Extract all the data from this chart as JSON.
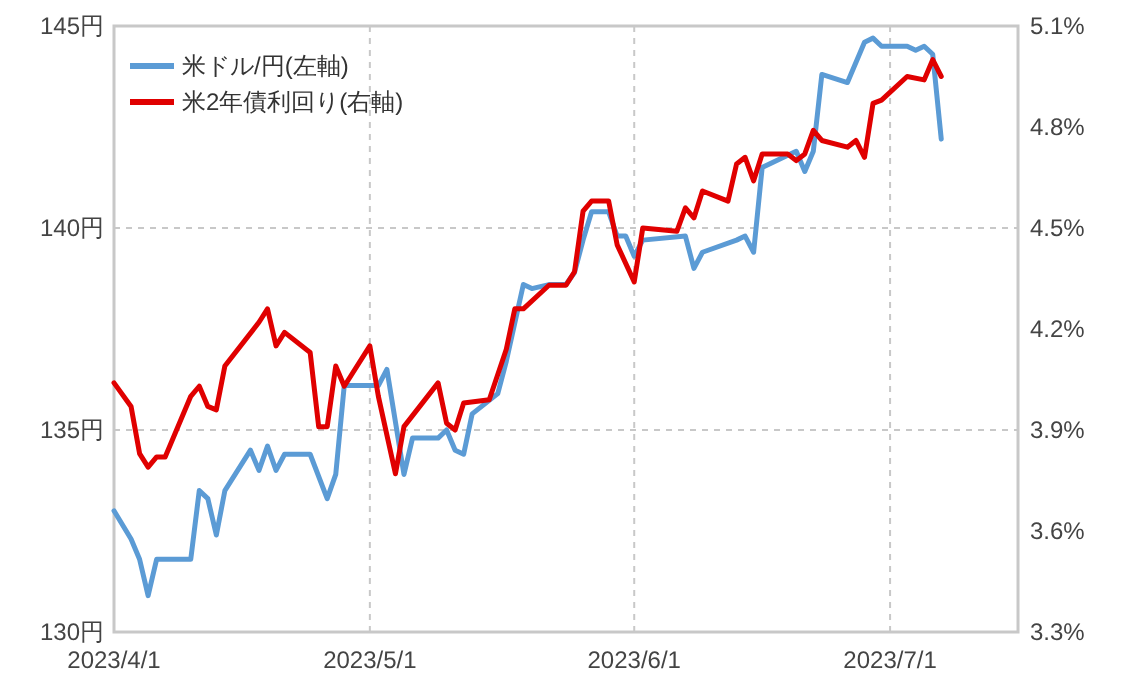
{
  "chart_data": {
    "type": "line",
    "xlim": [
      "2023-04-01",
      "2023-07-16"
    ],
    "xticks": [
      {
        "value": "2023-04-01",
        "label": "2023/4/1"
      },
      {
        "value": "2023-05-01",
        "label": "2023/5/1"
      },
      {
        "value": "2023-06-01",
        "label": "2023/6/1"
      },
      {
        "value": "2023-07-01",
        "label": "2023/7/1"
      }
    ],
    "ylim": [
      130,
      145
    ],
    "yticks": [
      {
        "value": 130,
        "label": "130円"
      },
      {
        "value": 135,
        "label": "135円"
      },
      {
        "value": 140,
        "label": "140円"
      },
      {
        "value": 145,
        "label": "145円"
      }
    ],
    "y2lim": [
      3.3,
      5.1
    ],
    "y2ticks": [
      {
        "value": 3.3,
        "label": "3.3%"
      },
      {
        "value": 3.6,
        "label": "3.6%"
      },
      {
        "value": 3.9,
        "label": "3.9%"
      },
      {
        "value": 4.2,
        "label": "4.2%"
      },
      {
        "value": 4.5,
        "label": "4.5%"
      },
      {
        "value": 4.8,
        "label": "4.8%"
      },
      {
        "value": 5.1,
        "label": "5.1%"
      }
    ],
    "grid": true,
    "legend": "top left",
    "marker": "none",
    "line_style": "solid",
    "series": [
      {
        "name": "米ドル/円(左軸)",
        "color": "#5b9bd5",
        "axis": "y",
        "x": [
          "2023-04-01",
          "2023-04-03",
          "2023-04-04",
          "2023-04-05",
          "2023-04-06",
          "2023-04-10",
          "2023-04-11",
          "2023-04-12",
          "2023-04-13",
          "2023-04-14",
          "2023-04-17",
          "2023-04-18",
          "2023-04-19",
          "2023-04-20",
          "2023-04-21",
          "2023-04-24",
          "2023-04-26",
          "2023-04-27",
          "2023-04-28",
          "2023-05-02",
          "2023-05-03",
          "2023-05-05",
          "2023-05-06",
          "2023-05-09",
          "2023-05-10",
          "2023-05-11",
          "2023-05-12",
          "2023-05-13",
          "2023-05-16",
          "2023-05-17",
          "2023-05-19",
          "2023-05-20",
          "2023-05-22",
          "2023-05-24",
          "2023-05-25",
          "2023-05-26",
          "2023-05-27",
          "2023-05-29",
          "2023-05-30",
          "2023-05-31",
          "2023-06-01",
          "2023-06-02",
          "2023-06-07",
          "2023-06-08",
          "2023-06-09",
          "2023-06-13",
          "2023-06-14",
          "2023-06-15",
          "2023-06-16",
          "2023-06-19",
          "2023-06-20",
          "2023-06-21",
          "2023-06-22",
          "2023-06-23",
          "2023-06-26",
          "2023-06-28",
          "2023-06-29",
          "2023-06-30",
          "2023-07-03",
          "2023-07-04",
          "2023-07-05",
          "2023-07-06",
          "2023-07-07"
        ],
        "values": [
          133.0,
          132.3,
          131.8,
          130.9,
          131.8,
          131.8,
          133.5,
          133.3,
          132.4,
          133.5,
          134.5,
          134.0,
          134.6,
          134.0,
          134.4,
          134.4,
          133.3,
          133.9,
          136.1,
          136.1,
          136.5,
          133.9,
          134.8,
          134.8,
          135.0,
          134.5,
          134.4,
          135.4,
          135.9,
          136.7,
          138.6,
          138.5,
          138.6,
          138.6,
          138.9,
          139.7,
          140.4,
          140.4,
          139.8,
          139.8,
          139.3,
          139.7,
          139.8,
          139.0,
          139.4,
          139.7,
          139.8,
          139.4,
          141.5,
          141.8,
          141.9,
          141.4,
          141.9,
          143.8,
          143.6,
          144.6,
          144.7,
          144.5,
          144.5,
          144.4,
          144.5,
          144.3,
          142.2
        ]
      },
      {
        "name": "米2年債利回り(右軸)",
        "color": "#e00000",
        "axis": "y2",
        "x": [
          "2023-04-01",
          "2023-04-03",
          "2023-04-04",
          "2023-04-05",
          "2023-04-06",
          "2023-04-07",
          "2023-04-10",
          "2023-04-11",
          "2023-04-12",
          "2023-04-13",
          "2023-04-14",
          "2023-04-18",
          "2023-04-19",
          "2023-04-20",
          "2023-04-21",
          "2023-04-24",
          "2023-04-25",
          "2023-04-26",
          "2023-04-27",
          "2023-04-28",
          "2023-05-01",
          "2023-05-02",
          "2023-05-04",
          "2023-05-05",
          "2023-05-09",
          "2023-05-10",
          "2023-05-11",
          "2023-05-12",
          "2023-05-15",
          "2023-05-17",
          "2023-05-18",
          "2023-05-19",
          "2023-05-22",
          "2023-05-24",
          "2023-05-25",
          "2023-05-26",
          "2023-05-27",
          "2023-05-29",
          "2023-05-30",
          "2023-06-01",
          "2023-06-02",
          "2023-06-06",
          "2023-06-07",
          "2023-06-08",
          "2023-06-09",
          "2023-06-12",
          "2023-06-13",
          "2023-06-14",
          "2023-06-15",
          "2023-06-16",
          "2023-06-19",
          "2023-06-20",
          "2023-06-21",
          "2023-06-22",
          "2023-06-23",
          "2023-06-26",
          "2023-06-27",
          "2023-06-28",
          "2023-06-29",
          "2023-06-30",
          "2023-07-03",
          "2023-07-05",
          "2023-07-06",
          "2023-07-07"
        ],
        "values": [
          4.04,
          3.97,
          3.83,
          3.79,
          3.82,
          3.82,
          4.0,
          4.03,
          3.97,
          3.96,
          4.09,
          4.22,
          4.26,
          4.15,
          4.19,
          4.13,
          3.91,
          3.91,
          4.09,
          4.03,
          4.15,
          4.0,
          3.77,
          3.91,
          4.04,
          3.92,
          3.9,
          3.98,
          3.99,
          4.14,
          4.26,
          4.26,
          4.33,
          4.33,
          4.37,
          4.55,
          4.58,
          4.58,
          4.45,
          4.34,
          4.5,
          4.49,
          4.56,
          4.53,
          4.61,
          4.58,
          4.69,
          4.71,
          4.64,
          4.72,
          4.72,
          4.7,
          4.72,
          4.79,
          4.76,
          4.74,
          4.76,
          4.71,
          4.87,
          4.88,
          4.95,
          4.94,
          5.0,
          4.95
        ]
      }
    ]
  }
}
